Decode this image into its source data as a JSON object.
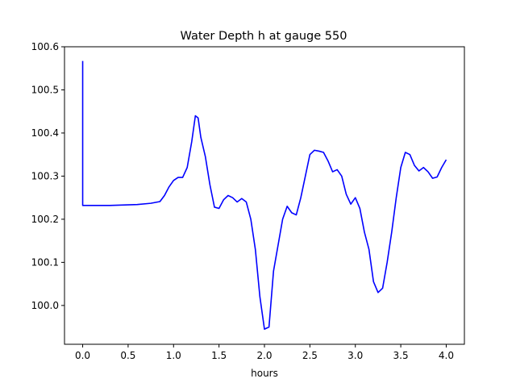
{
  "chart_data": {
    "type": "line",
    "title": "Water Depth h at gauge 550",
    "xlabel": "hours",
    "ylabel": "",
    "xlim": [
      -0.2,
      4.2
    ],
    "ylim": [
      99.91,
      100.6
    ],
    "x_ticks": [
      0.0,
      0.5,
      1.0,
      1.5,
      2.0,
      2.5,
      3.0,
      3.5,
      4.0
    ],
    "x_tick_labels": [
      "0.0",
      "0.5",
      "1.0",
      "1.5",
      "2.0",
      "2.5",
      "3.0",
      "3.5",
      "4.0"
    ],
    "y_ticks": [
      100.0,
      100.1,
      100.2,
      100.3,
      100.4,
      100.5,
      100.6
    ],
    "y_tick_labels": [
      "100.0",
      "100.1",
      "100.2",
      "100.3",
      "100.4",
      "100.5",
      "100.6"
    ],
    "grid": false,
    "series": [
      {
        "color": "#0000ff",
        "points": [
          [
            0.0,
            100.567
          ],
          [
            0.0,
            100.232
          ],
          [
            0.3,
            100.232
          ],
          [
            0.6,
            100.234
          ],
          [
            0.75,
            100.237
          ],
          [
            0.85,
            100.241
          ],
          [
            0.9,
            100.255
          ],
          [
            0.95,
            100.275
          ],
          [
            1.0,
            100.29
          ],
          [
            1.05,
            100.297
          ],
          [
            1.1,
            100.297
          ],
          [
            1.15,
            100.32
          ],
          [
            1.2,
            100.38
          ],
          [
            1.24,
            100.44
          ],
          [
            1.27,
            100.435
          ],
          [
            1.3,
            100.39
          ],
          [
            1.35,
            100.345
          ],
          [
            1.4,
            100.28
          ],
          [
            1.45,
            100.228
          ],
          [
            1.5,
            100.225
          ],
          [
            1.55,
            100.245
          ],
          [
            1.6,
            100.255
          ],
          [
            1.65,
            100.25
          ],
          [
            1.7,
            100.24
          ],
          [
            1.75,
            100.248
          ],
          [
            1.8,
            100.24
          ],
          [
            1.85,
            100.2
          ],
          [
            1.9,
            100.13
          ],
          [
            1.95,
            100.02
          ],
          [
            2.0,
            99.945
          ],
          [
            2.05,
            99.95
          ],
          [
            2.1,
            100.08
          ],
          [
            2.15,
            100.14
          ],
          [
            2.2,
            100.2
          ],
          [
            2.25,
            100.23
          ],
          [
            2.3,
            100.215
          ],
          [
            2.35,
            100.21
          ],
          [
            2.4,
            100.25
          ],
          [
            2.45,
            100.3
          ],
          [
            2.5,
            100.35
          ],
          [
            2.55,
            100.36
          ],
          [
            2.6,
            100.358
          ],
          [
            2.65,
            100.355
          ],
          [
            2.7,
            100.335
          ],
          [
            2.75,
            100.31
          ],
          [
            2.8,
            100.315
          ],
          [
            2.85,
            100.3
          ],
          [
            2.9,
            100.258
          ],
          [
            2.95,
            100.235
          ],
          [
            3.0,
            100.25
          ],
          [
            3.05,
            100.225
          ],
          [
            3.1,
            100.17
          ],
          [
            3.15,
            100.13
          ],
          [
            3.2,
            100.055
          ],
          [
            3.25,
            100.03
          ],
          [
            3.3,
            100.04
          ],
          [
            3.35,
            100.1
          ],
          [
            3.4,
            100.17
          ],
          [
            3.45,
            100.25
          ],
          [
            3.5,
            100.32
          ],
          [
            3.55,
            100.355
          ],
          [
            3.6,
            100.35
          ],
          [
            3.65,
            100.325
          ],
          [
            3.7,
            100.312
          ],
          [
            3.75,
            100.32
          ],
          [
            3.8,
            100.31
          ],
          [
            3.85,
            100.295
          ],
          [
            3.9,
            100.298
          ],
          [
            3.95,
            100.32
          ],
          [
            4.0,
            100.338
          ]
        ]
      }
    ]
  }
}
